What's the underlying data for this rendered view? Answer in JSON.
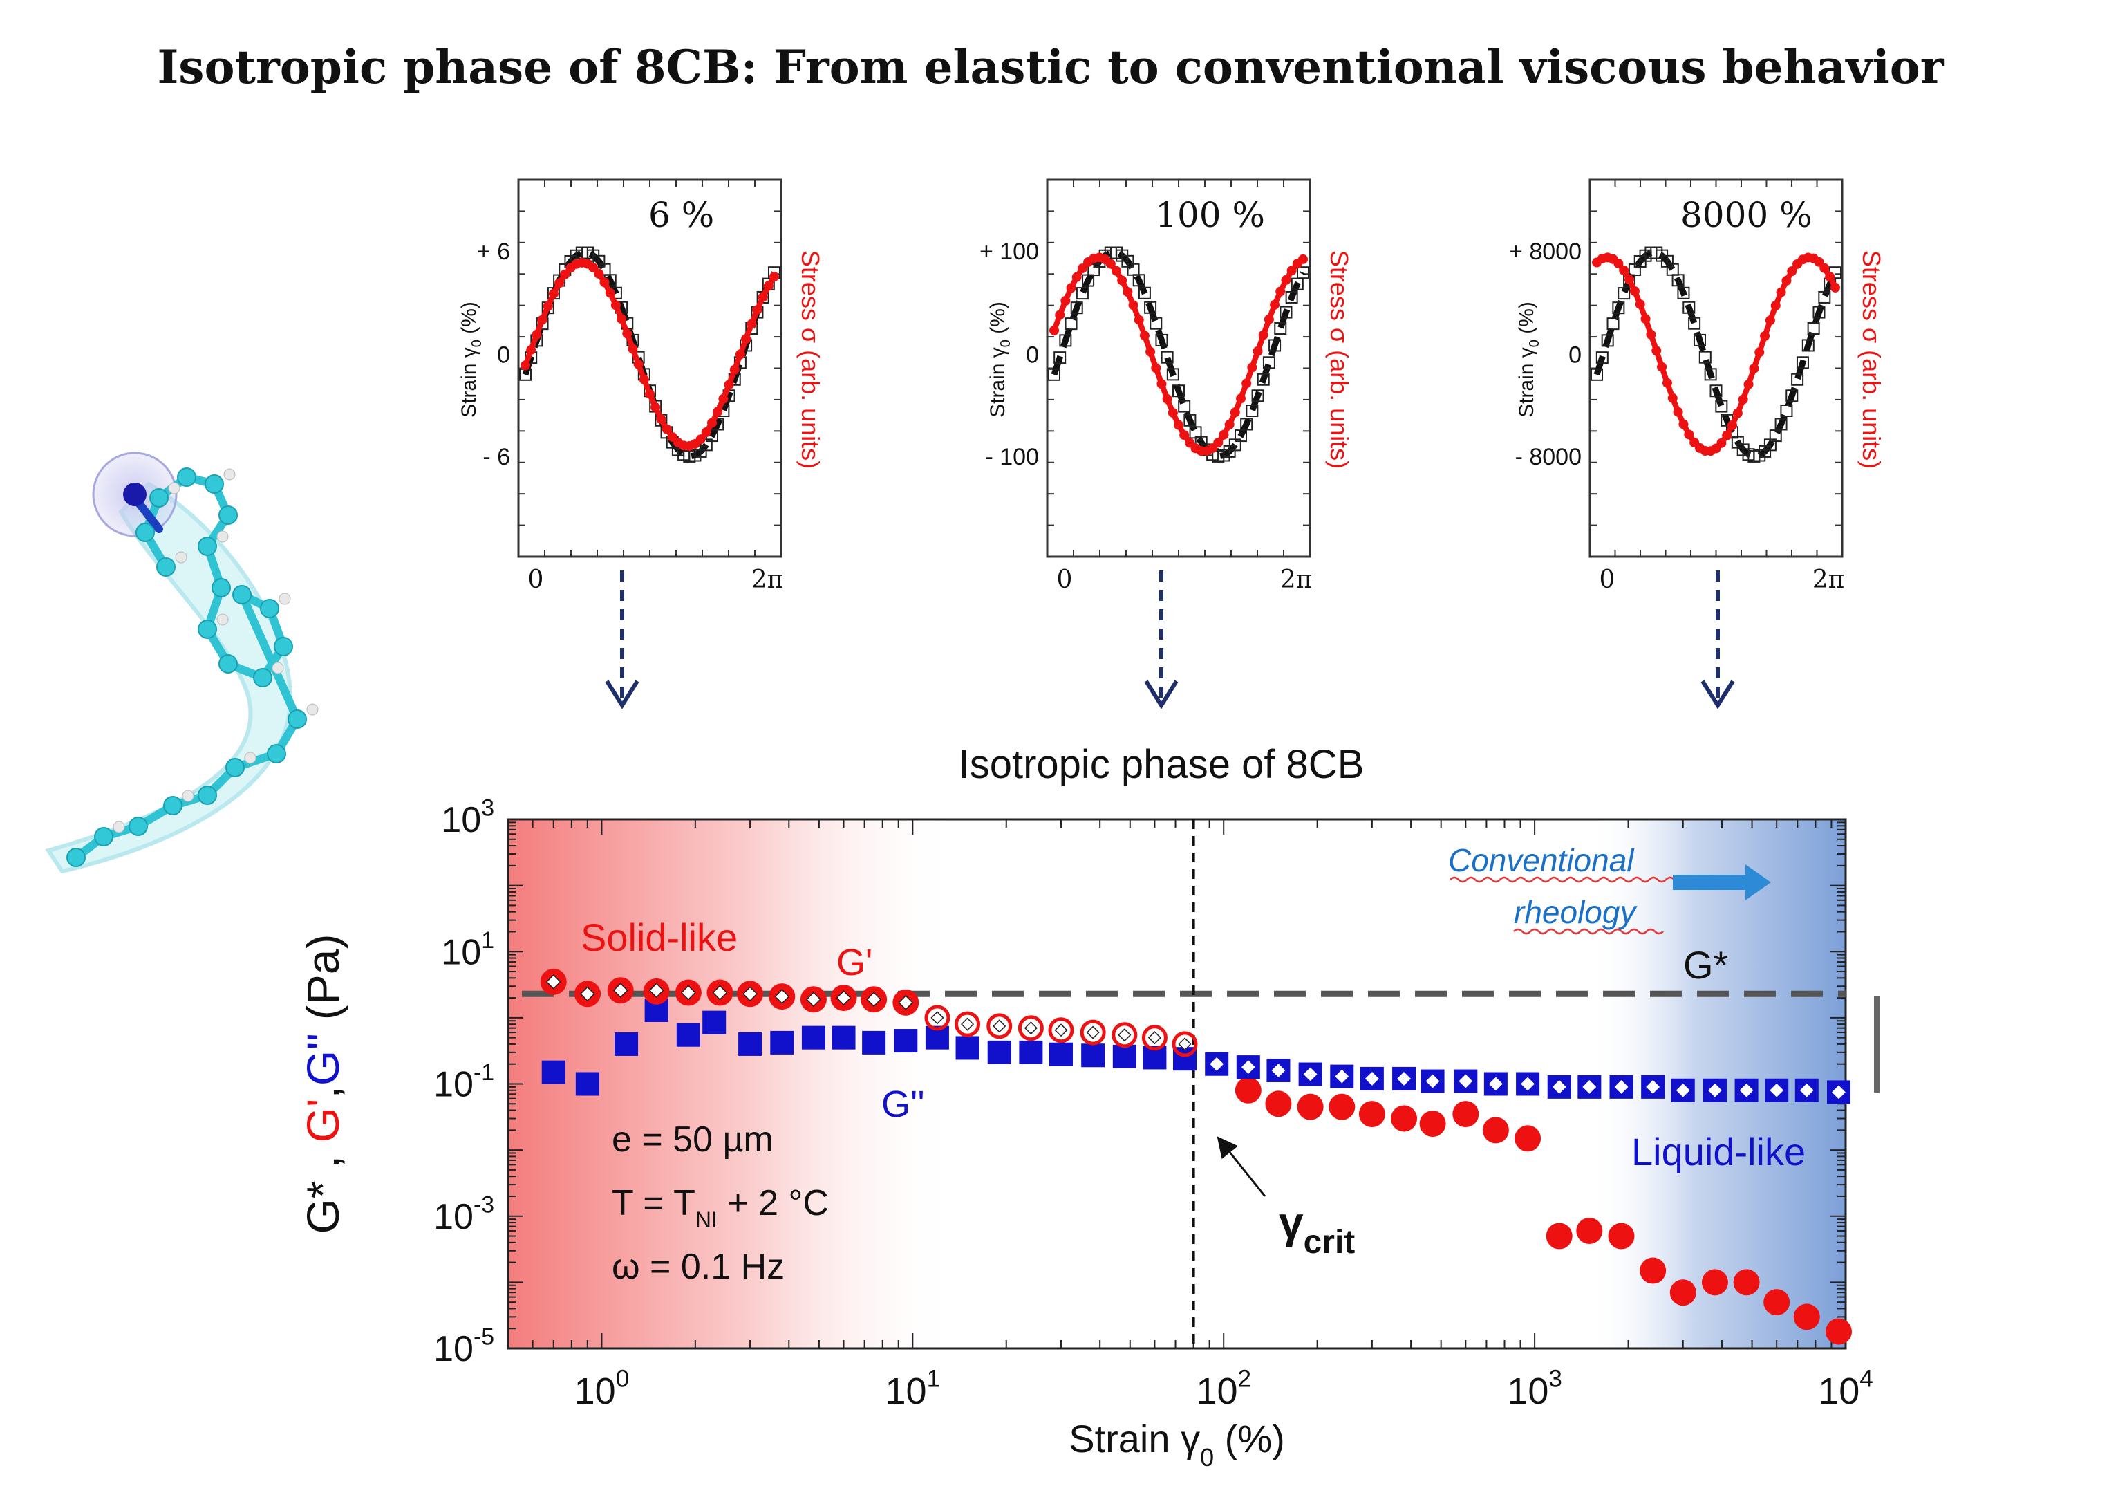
{
  "page_title": "Isotropic phase of 8CB: From elastic to conventional viscous behavior",
  "colors": {
    "red": "#ee1111",
    "blue": "#1111cc",
    "black": "#111111",
    "cyan": "#33c8d8",
    "molecule_blue": "#1a1aaa",
    "arrow_blue": "#1f2f6b",
    "note_blue": "#1a6fc7"
  },
  "insets": [
    {
      "id": "inset-6",
      "amplitude_label": "6 %",
      "strain_ticks": [
        "+ 6",
        "0",
        "- 6"
      ],
      "x_ticks": [
        "0",
        "2π"
      ],
      "ylabel_prefix": "Strain γ",
      "ylabel_sub": "0",
      "ylabel_suffix": " (%)",
      "y2label": "Stress σ (arb. units)",
      "phase_shift": 0.08,
      "stress_amp": 0.9
    },
    {
      "id": "inset-100",
      "amplitude_label": "100 %",
      "strain_ticks": [
        "+ 100",
        "0",
        "- 100"
      ],
      "x_ticks": [
        "0",
        "2π"
      ],
      "ylabel_prefix": "Strain γ",
      "ylabel_sub": "0",
      "ylabel_suffix": " (%)",
      "y2label": "Stress σ (arb. units)",
      "phase_shift": 0.45,
      "stress_amp": 0.95
    },
    {
      "id": "inset-8000",
      "amplitude_label": "8000 %",
      "strain_ticks": [
        "+ 8000",
        "0",
        "- 8000"
      ],
      "x_ticks": [
        "0",
        "2π"
      ],
      "ylabel_prefix": "Strain γ",
      "ylabel_sub": "0",
      "ylabel_suffix": " (%)",
      "y2label": "Stress σ (arb. units)",
      "phase_shift": 1.45,
      "stress_amp": 0.95
    }
  ],
  "chart_data": {
    "type": "scatter",
    "title": "Isotropic phase of 8CB",
    "xlabel_prefix": "Strain γ",
    "xlabel_sub": "0",
    "xlabel_suffix": " (%)",
    "ylabel_parts": [
      {
        "text": "G*",
        "color": "#111111"
      },
      {
        "text": " , ",
        "color": "#111111"
      },
      {
        "text": "G'",
        "color": "#ee1111"
      },
      {
        "text": ",",
        "color": "#111111"
      },
      {
        "text": "G''",
        "color": "#1111cc"
      },
      {
        "text": " (Pa)",
        "color": "#111111"
      }
    ],
    "xscale": "log",
    "yscale": "log",
    "xlim": [
      0.5,
      10000
    ],
    "ylim": [
      1e-05,
      1000
    ],
    "xticks": [
      {
        "value": 1,
        "base": "10",
        "exp": "0"
      },
      {
        "value": 10,
        "base": "10",
        "exp": "1"
      },
      {
        "value": 100,
        "base": "10",
        "exp": "2"
      },
      {
        "value": 1000,
        "base": "10",
        "exp": "3"
      },
      {
        "value": 10000,
        "base": "10",
        "exp": "4"
      }
    ],
    "yticks": [
      {
        "value": 1000,
        "base": "10",
        "exp": "3"
      },
      {
        "value": 10,
        "base": "10",
        "exp": "1"
      },
      {
        "value": 0.1,
        "base": "10",
        "exp": "-1"
      },
      {
        "value": 0.001,
        "base": "10",
        "exp": "-3"
      },
      {
        "value": 1e-05,
        "base": "10",
        "exp": "-5"
      }
    ],
    "series": [
      {
        "name": "G'",
        "color": "#ee1111",
        "marker": "circle",
        "x": [
          0.7,
          0.9,
          1.15,
          1.5,
          1.9,
          2.4,
          3.0,
          3.8,
          4.8,
          6.0,
          7.5,
          9.5,
          120,
          150,
          190,
          240,
          300,
          380,
          470,
          600,
          750,
          950,
          1200,
          1500,
          1900,
          2400,
          3000,
          3800,
          4800,
          6000,
          7500,
          9500
        ],
        "y": [
          3.5,
          2.3,
          2.6,
          2.5,
          2.4,
          2.4,
          2.3,
          2.1,
          1.9,
          2.0,
          1.9,
          1.7,
          0.08,
          0.05,
          0.045,
          0.045,
          0.035,
          0.03,
          0.025,
          0.035,
          0.02,
          0.015,
          0.0005,
          0.0006,
          0.0005,
          0.00015,
          7e-05,
          0.0001,
          0.0001,
          5e-05,
          3e-05,
          1.8e-05
        ]
      },
      {
        "name": "G''",
        "color": "#1111cc",
        "marker": "square",
        "x": [
          0.7,
          0.9,
          1.2,
          1.5,
          1.9,
          2.3,
          3.0,
          3.8,
          4.8,
          6.0,
          7.5,
          9.5,
          12,
          15,
          19,
          24,
          30,
          38,
          48,
          60,
          75
        ],
        "y": [
          0.15,
          0.1,
          0.4,
          1.3,
          0.55,
          0.85,
          0.4,
          0.42,
          0.5,
          0.5,
          0.42,
          0.45,
          0.5,
          0.35,
          0.3,
          0.3,
          0.28,
          0.27,
          0.26,
          0.25,
          0.24
        ]
      },
      {
        "name": "G*",
        "color": "#111111",
        "marker": "open-square",
        "x": [
          0.7,
          0.9,
          1.15,
          1.5,
          1.9,
          2.4,
          3.0,
          3.8,
          4.8,
          6.0,
          7.5,
          9.5,
          12,
          15,
          19,
          24,
          30,
          38,
          48,
          60,
          75,
          95,
          120,
          150,
          190,
          240,
          300,
          380,
          470,
          600,
          750,
          950,
          1200,
          1500,
          1900,
          2400,
          3000,
          3800,
          4800,
          6000,
          7500,
          9500
        ],
        "y": [
          3.5,
          2.3,
          2.6,
          2.6,
          2.4,
          2.4,
          2.3,
          2.1,
          1.9,
          2.0,
          1.9,
          1.7,
          1.0,
          0.8,
          0.75,
          0.7,
          0.65,
          0.6,
          0.55,
          0.5,
          0.4,
          0.2,
          0.18,
          0.16,
          0.14,
          0.13,
          0.12,
          0.12,
          0.11,
          0.11,
          0.1,
          0.1,
          0.09,
          0.09,
          0.09,
          0.09,
          0.08,
          0.08,
          0.08,
          0.08,
          0.08,
          0.075
        ]
      }
    ],
    "guides": {
      "gstar_level": 2.3,
      "gstar_label": "G*",
      "gamma_crit": 80
    },
    "annotations": {
      "solid_like": "Solid-like",
      "gprime": "G'",
      "gdouble": "G''",
      "liquid_like": "Liquid-like",
      "gamma": "γ",
      "crit": "crit",
      "conventional": "Conventional",
      "rheology": "rheology",
      "params": [
        {
          "a": "e = 50 µm",
          "sub": "",
          "b": ""
        },
        {
          "a": "T = T",
          "sub": "NI",
          "b": " + 2 °C"
        },
        {
          "a": "ω = 0.1 Hz",
          "sub": "",
          "b": ""
        }
      ]
    }
  }
}
